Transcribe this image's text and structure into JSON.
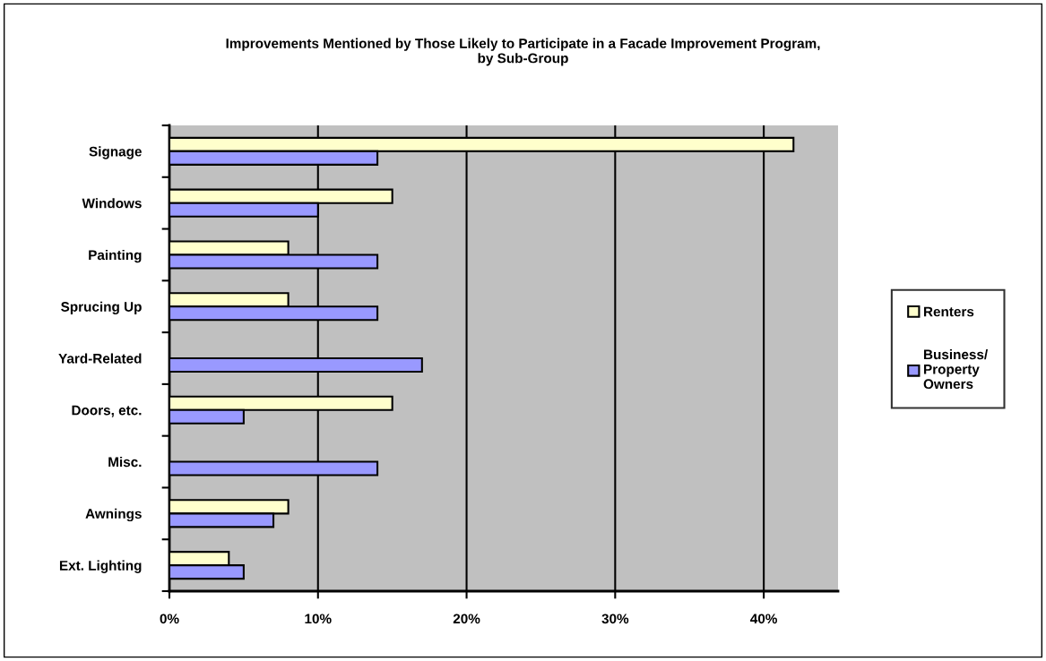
{
  "chart_data": {
    "type": "bar",
    "orientation": "horizontal",
    "title": "Improvements Mentioned by Those Likely to Participate in a Facade Improvement Program,\nby Sub-Group",
    "categories": [
      "Signage",
      "Windows",
      "Painting",
      "Sprucing Up",
      "Yard-Related",
      "Doors, etc.",
      "Misc.",
      "Awnings",
      "Ext. Lighting"
    ],
    "series": [
      {
        "name": "Renters",
        "color": "#ffffcc",
        "values": [
          42,
          15,
          8,
          8,
          null,
          15,
          null,
          8,
          4
        ]
      },
      {
        "name": "Business/\nProperty\nOwners",
        "color": "#9999ff",
        "values": [
          14,
          10,
          14,
          14,
          17,
          5,
          14,
          7,
          5
        ]
      }
    ],
    "xlim": [
      0,
      45
    ],
    "xticks": [
      {
        "value": 0,
        "label": "0%"
      },
      {
        "value": 10,
        "label": "10%"
      },
      {
        "value": 20,
        "label": "20%"
      },
      {
        "value": 30,
        "label": "30%"
      },
      {
        "value": 40,
        "label": "40%"
      }
    ],
    "grid": "x",
    "legend": "right"
  }
}
